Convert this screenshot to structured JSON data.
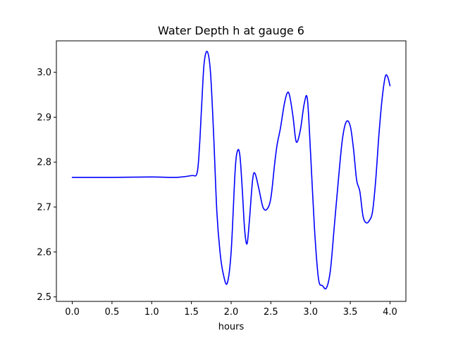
{
  "chart_data": {
    "type": "line",
    "title": "Water Depth h at gauge 6",
    "xlabel": "hours",
    "ylabel": "",
    "xlim": [
      -0.2,
      4.2
    ],
    "ylim": [
      2.49,
      3.07
    ],
    "xticks": [
      0.0,
      0.5,
      1.0,
      1.5,
      2.0,
      2.5,
      3.0,
      3.5,
      4.0
    ],
    "xtick_labels": [
      "0.0",
      "0.5",
      "1.0",
      "1.5",
      "2.0",
      "2.5",
      "3.0",
      "3.5",
      "4.0"
    ],
    "yticks": [
      2.5,
      2.6,
      2.7,
      2.8,
      2.9,
      3.0
    ],
    "ytick_labels": [
      "2.5",
      "2.6",
      "2.7",
      "2.8",
      "2.9",
      "3.0"
    ],
    "grid": false,
    "line_color": "#0000ff",
    "series": [
      {
        "x": [
          0.0,
          0.5,
          1.0,
          1.3,
          1.5,
          1.57,
          1.6,
          1.63,
          1.66,
          1.7,
          1.74,
          1.78,
          1.82,
          1.86,
          1.9,
          1.95,
          2.0,
          2.05,
          2.08,
          2.11,
          2.14,
          2.17,
          2.2,
          2.23,
          2.27,
          2.3,
          2.35,
          2.4,
          2.45,
          2.5,
          2.55,
          2.58,
          2.62,
          2.67,
          2.71,
          2.74,
          2.78,
          2.82,
          2.87,
          2.92,
          2.96,
          3.0,
          3.05,
          3.1,
          3.15,
          3.2,
          3.25,
          3.3,
          3.35,
          3.4,
          3.45,
          3.5,
          3.54,
          3.58,
          3.62,
          3.66,
          3.7,
          3.74,
          3.78,
          3.82,
          3.86,
          3.9,
          3.94,
          3.97,
          4.0
        ],
        "y": [
          2.766,
          2.766,
          2.767,
          2.766,
          2.77,
          2.775,
          2.83,
          2.93,
          3.02,
          3.046,
          3.0,
          2.86,
          2.69,
          2.6,
          2.552,
          2.53,
          2.6,
          2.78,
          2.825,
          2.815,
          2.74,
          2.65,
          2.618,
          2.67,
          2.76,
          2.775,
          2.74,
          2.7,
          2.695,
          2.72,
          2.8,
          2.84,
          2.875,
          2.93,
          2.955,
          2.945,
          2.9,
          2.845,
          2.87,
          2.93,
          2.94,
          2.82,
          2.65,
          2.54,
          2.525,
          2.52,
          2.56,
          2.66,
          2.76,
          2.85,
          2.89,
          2.88,
          2.83,
          2.76,
          2.735,
          2.68,
          2.665,
          2.67,
          2.69,
          2.76,
          2.86,
          2.94,
          2.99,
          2.99,
          2.97
        ]
      }
    ]
  }
}
